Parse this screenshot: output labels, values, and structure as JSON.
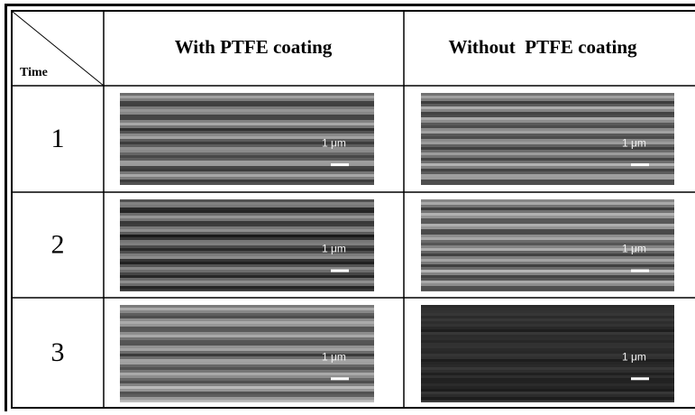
{
  "table": {
    "corner": "Time",
    "columns": [
      "With PTFE coating",
      "Without  PTFE coating"
    ],
    "rows": [
      {
        "time": "1",
        "images": [
          {
            "scale_label": "1 μm"
          },
          {
            "scale_label": "1 μm"
          }
        ]
      },
      {
        "time": "2",
        "images": [
          {
            "scale_label": "1 μm"
          },
          {
            "scale_label": "1 μm"
          }
        ]
      },
      {
        "time": "3",
        "images": [
          {
            "scale_label": "1 μm"
          },
          {
            "scale_label": "1 μm"
          }
        ]
      }
    ]
  }
}
